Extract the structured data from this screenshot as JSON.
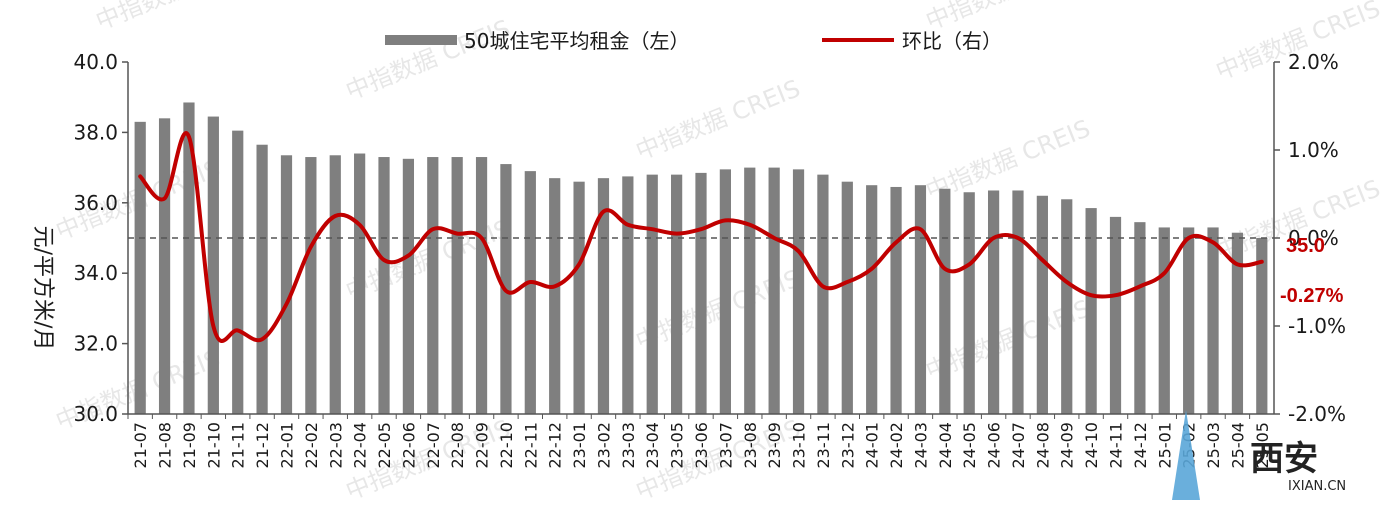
{
  "chart_data": {
    "type": "bar",
    "categories": [
      "21-07",
      "21-08",
      "21-09",
      "21-10",
      "21-11",
      "21-12",
      "22-01",
      "22-02",
      "22-03",
      "22-04",
      "22-05",
      "22-06",
      "22-07",
      "22-08",
      "22-09",
      "22-10",
      "22-11",
      "22-12",
      "23-01",
      "23-02",
      "23-03",
      "23-04",
      "23-05",
      "23-06",
      "23-07",
      "23-08",
      "23-09",
      "23-10",
      "23-11",
      "23-12",
      "24-01",
      "24-02",
      "24-03",
      "24-04",
      "24-05",
      "24-06",
      "24-07",
      "24-08",
      "24-09",
      "24-10",
      "24-11",
      "24-12",
      "25-01",
      "25-02",
      "25-03",
      "25-04",
      "25-05"
    ],
    "series": [
      {
        "name": "50城住宅平均租金（左）",
        "type": "bar",
        "axis": "left",
        "color": "#7f7f7f",
        "values": [
          38.3,
          38.4,
          38.85,
          38.45,
          38.05,
          37.65,
          37.35,
          37.3,
          37.35,
          37.4,
          37.3,
          37.25,
          37.3,
          37.3,
          37.3,
          37.1,
          36.9,
          36.7,
          36.6,
          36.7,
          36.75,
          36.8,
          36.8,
          36.85,
          36.95,
          37.0,
          37.0,
          36.95,
          36.8,
          36.6,
          36.5,
          36.45,
          36.5,
          36.4,
          36.3,
          36.35,
          36.35,
          36.2,
          36.1,
          35.85,
          35.6,
          35.45,
          35.3,
          35.3,
          35.3,
          35.15,
          35.0
        ]
      },
      {
        "name": "环比（右）",
        "type": "line",
        "axis": "right",
        "color": "#c00000",
        "values": [
          0.7,
          0.45,
          1.15,
          -1.0,
          -1.05,
          -1.15,
          -0.75,
          -0.1,
          0.25,
          0.15,
          -0.25,
          -0.2,
          0.1,
          0.05,
          0.0,
          -0.6,
          -0.5,
          -0.55,
          -0.3,
          0.3,
          0.15,
          0.1,
          0.05,
          0.1,
          0.2,
          0.15,
          0.0,
          -0.15,
          -0.55,
          -0.5,
          -0.35,
          -0.05,
          0.1,
          -0.35,
          -0.3,
          0.0,
          0.0,
          -0.25,
          -0.5,
          -0.65,
          -0.65,
          -0.55,
          -0.4,
          0.0,
          -0.05,
          -0.3,
          -0.27
        ]
      }
    ],
    "y_left": {
      "min": 30.0,
      "max": 40.0,
      "ticks": [
        "30.0",
        "32.0",
        "34.0",
        "36.0",
        "38.0",
        "40.0"
      ],
      "label": "元/平方米/月"
    },
    "y_right": {
      "min": -2.0,
      "max": 2.0,
      "ticks": [
        "-2.0%",
        "-1.0%",
        "0.0%",
        "1.0%",
        "2.0%"
      ]
    },
    "reference_line": {
      "axis": "right",
      "value": 0.0,
      "style": "dashed"
    },
    "annotations": {
      "last_bar_value": "35.0",
      "last_line_value": "-0.27%"
    },
    "legend_placement": "top",
    "grid": false,
    "watermarks": [
      "中指数据 CREIS"
    ],
    "corner_logo": {
      "text": "西安",
      "subtext": "IXIAN.CN"
    }
  }
}
